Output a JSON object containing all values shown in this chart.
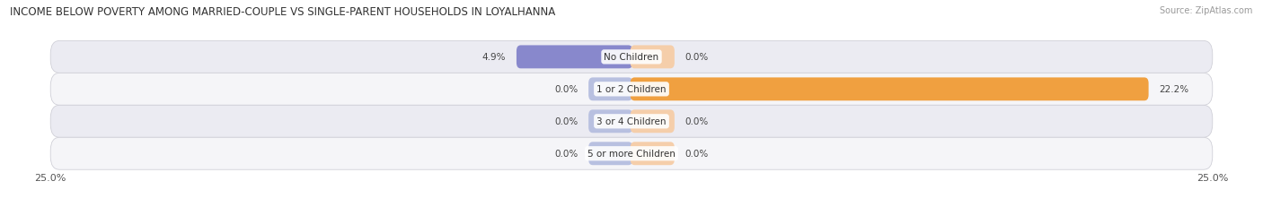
{
  "title": "INCOME BELOW POVERTY AMONG MARRIED-COUPLE VS SINGLE-PARENT HOUSEHOLDS IN LOYALHANNA",
  "source": "Source: ZipAtlas.com",
  "categories": [
    "No Children",
    "1 or 2 Children",
    "3 or 4 Children",
    "5 or more Children"
  ],
  "married_values": [
    4.9,
    0.0,
    0.0,
    0.0
  ],
  "single_values": [
    0.0,
    22.2,
    0.0,
    0.0
  ],
  "married_color": "#8888cc",
  "married_color_light": "#b8c0e0",
  "single_color": "#f0a040",
  "single_color_light": "#f5ceaa",
  "row_bg_color_odd": "#ebebf2",
  "row_bg_color_even": "#f5f5f8",
  "xlim": 25.0,
  "title_fontsize": 8.5,
  "source_fontsize": 7.0,
  "label_fontsize": 7.5,
  "category_fontsize": 7.5,
  "axis_label_fontsize": 8,
  "figsize": [
    14.06,
    2.32
  ],
  "dpi": 100
}
